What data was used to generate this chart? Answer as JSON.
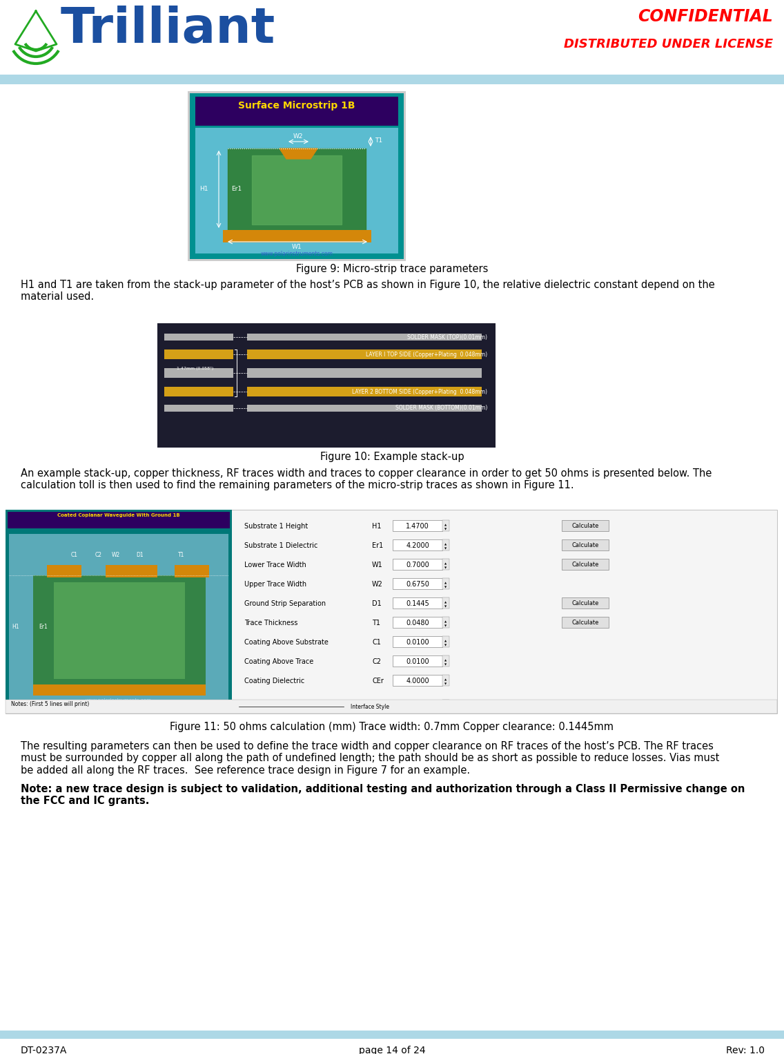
{
  "page_width": 11.36,
  "page_height": 15.26,
  "dpi": 100,
  "header_bar_color": "#ADD8E6",
  "confidential_text": "CONFIDENTIAL",
  "confidential_color": "#FF0000",
  "distributed_text": "DISTRIBUTED UNDER LICENSE",
  "distributed_color": "#FF0000",
  "footer_bar_color": "#ADD8E6",
  "footer_text_left": "DT-0237A",
  "footer_text_center": "page 14 of 24",
  "footer_text_right": "Rev: 1.0",
  "fig9_caption": "Figure 9: Micro-strip trace parameters",
  "fig10_caption": "Figure 10: Example stack-up",
  "fig11_caption": "Figure 11: 50 ohms calculation (mm) Trace width: 0.7mm Copper clearance: 0.1445mm",
  "body_text1": "H1 and T1 are taken from the stack-up parameter of the host’s PCB as shown in Figure 10, the relative dielectric constant depend on the\nmaterial used.",
  "body_text2": "An example stack-up, copper thickness, RF traces width and traces to copper clearance in order to get 50 ohms is presented below. The\ncalculation toll is then used to find the remaining parameters of the micro-strip traces as shown in Figure 11.",
  "body_text3": "The resulting parameters can then be used to define the trace width and copper clearance on RF traces of the host’s PCB. The RF traces\nmust be surrounded by copper all along the path of undefined length; the path should be as short as possible to reduce losses. Vias must\nbe added all along the RF traces.  See reference trace design in Figure 7 for an example.",
  "body_text4_bold": "Note: a new trace design is subject to validation, additional testing and authorization through a Class II Permissive change on\nthe FCC and IC grants.",
  "bg_color": "#FFFFFF",
  "text_color": "#000000",
  "body_fontsize": 10.5,
  "caption_fontsize": 10.5,
  "footer_fontsize": 10
}
